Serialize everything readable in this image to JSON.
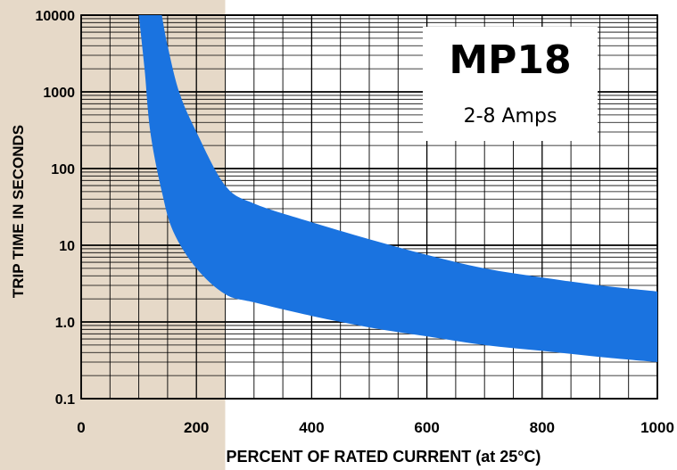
{
  "chart_data": {
    "type": "area",
    "title": "MP18",
    "subtitle": "2-8 Amps",
    "xlabel": "PERCENT OF RATED CURRENT (at 25°C)",
    "ylabel": "TRIP TIME IN SECONDS",
    "x_scale": "linear",
    "y_scale": "log",
    "xlim": [
      0,
      1000
    ],
    "ylim": [
      0.1,
      10000
    ],
    "x_ticks": [
      0,
      200,
      400,
      600,
      800,
      1000
    ],
    "x_tick_labels": [
      "0",
      "200",
      "400",
      "600",
      "800",
      "1000"
    ],
    "y_ticks": [
      0.1,
      1,
      10,
      100,
      1000,
      10000
    ],
    "y_tick_labels": [
      "0.1",
      "1.0",
      "10",
      "100",
      "1000",
      "10000"
    ],
    "shaded_region": {
      "x_range": [
        0,
        250
      ],
      "color": "#e6d9c8"
    },
    "band": {
      "color": "#1a73e0",
      "upper": [
        [
          140,
          10000
        ],
        [
          150,
          4000
        ],
        [
          170,
          1000
        ],
        [
          200,
          300
        ],
        [
          250,
          60
        ],
        [
          300,
          35
        ],
        [
          400,
          20
        ],
        [
          500,
          12
        ],
        [
          600,
          7.5
        ],
        [
          700,
          5
        ],
        [
          800,
          3.8
        ],
        [
          900,
          3
        ],
        [
          1000,
          2.5
        ]
      ],
      "lower": [
        [
          100,
          10000
        ],
        [
          110,
          2000
        ],
        [
          120,
          300
        ],
        [
          140,
          50
        ],
        [
          160,
          15
        ],
        [
          200,
          5
        ],
        [
          250,
          2.3
        ],
        [
          300,
          1.8
        ],
        [
          400,
          1.2
        ],
        [
          500,
          0.85
        ],
        [
          600,
          0.65
        ],
        [
          700,
          0.5
        ],
        [
          800,
          0.42
        ],
        [
          900,
          0.35
        ],
        [
          1000,
          0.3
        ]
      ]
    },
    "grid": true
  }
}
